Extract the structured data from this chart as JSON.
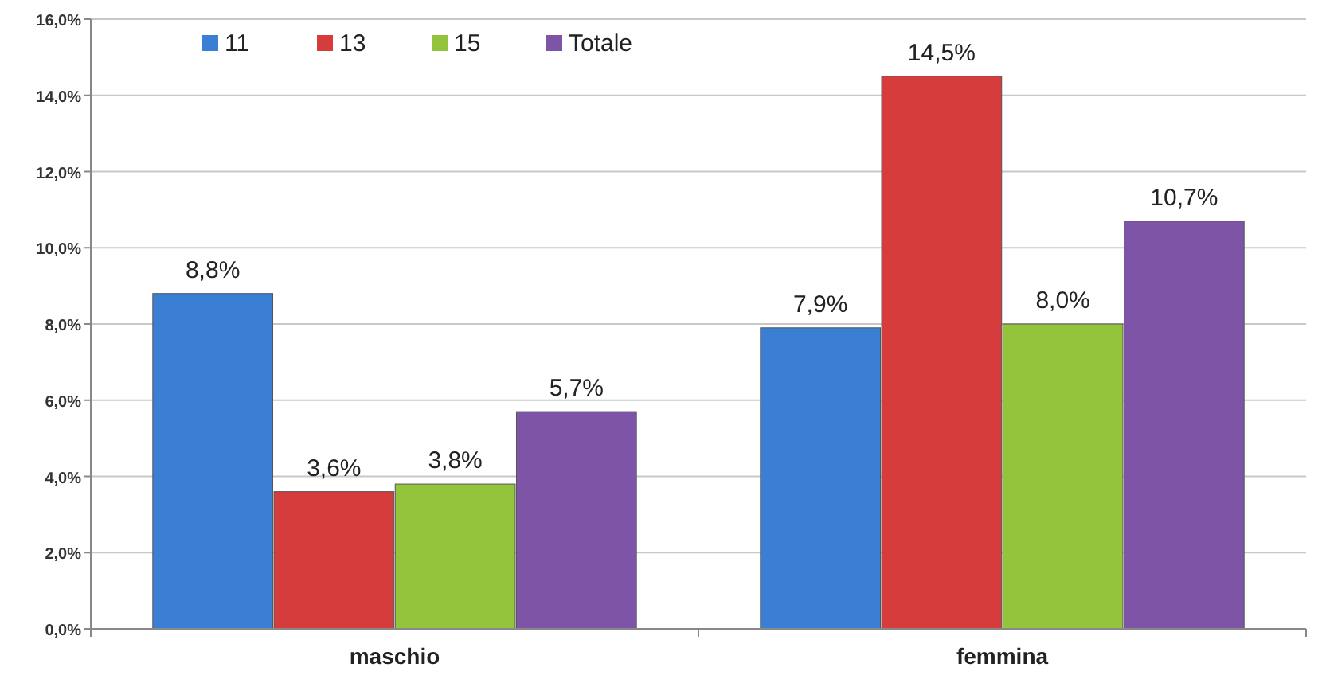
{
  "chart_data": {
    "type": "bar",
    "categories": [
      "maschio",
      "femmina"
    ],
    "series": [
      {
        "name": "11",
        "color": "#3b7fd4",
        "values": [
          8.8,
          7.9
        ],
        "value_labels": [
          "8,8%",
          "7,9%"
        ]
      },
      {
        "name": "13",
        "color": "#d63c3c",
        "values": [
          3.6,
          14.5
        ],
        "value_labels": [
          "3,6%",
          "14,5%"
        ]
      },
      {
        "name": "15",
        "color": "#93c43c",
        "values": [
          3.8,
          8.0
        ],
        "value_labels": [
          "3,8%",
          "8,0%"
        ]
      },
      {
        "name": "Totale",
        "color": "#7d54a6",
        "values": [
          5.7,
          10.7
        ],
        "value_labels": [
          "5,7%",
          "10,7%"
        ]
      }
    ],
    "ylim": [
      0,
      16
    ],
    "yticks": [
      {
        "value": 0,
        "label": "0,0%"
      },
      {
        "value": 2,
        "label": "2,0%"
      },
      {
        "value": 4,
        "label": "4,0%"
      },
      {
        "value": 6,
        "label": "6,0%"
      },
      {
        "value": 8,
        "label": "8,0%"
      },
      {
        "value": 10,
        "label": "10,0%"
      },
      {
        "value": 12,
        "label": "12,0%"
      },
      {
        "value": 14,
        "label": "14,0%"
      },
      {
        "value": 16,
        "label": "16,0%"
      }
    ],
    "grid": "y",
    "legend": "top left"
  }
}
